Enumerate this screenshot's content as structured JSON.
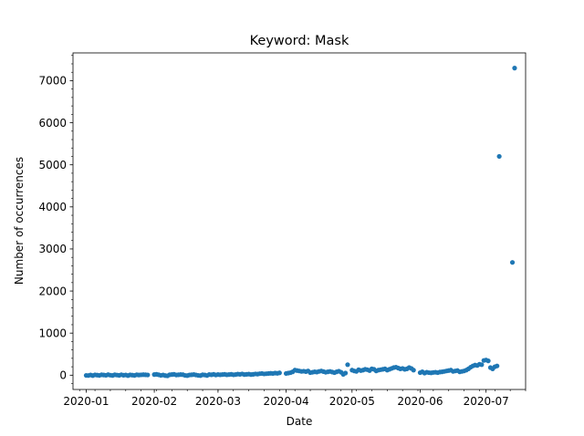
{
  "chart_data": {
    "type": "scatter",
    "title": "Keyword: Mask",
    "xlabel": "Date",
    "ylabel": "Number of occurrences",
    "x_ticks": [
      "2020-01",
      "2020-02",
      "2020-03",
      "2020-04",
      "2020-05",
      "2020-06",
      "2020-07"
    ],
    "y_ticks": [
      "0",
      "1000",
      "2000",
      "3000",
      "4000",
      "5000",
      "6000",
      "7000"
    ],
    "xlim": [
      "2019-12-26",
      "2020-07-19"
    ],
    "ylim": [
      -340,
      7660
    ],
    "grid": false,
    "color": "#1f77b4",
    "series": [
      {
        "points": [
          [
            "2020-01-01",
            -5
          ],
          [
            "2020-01-02",
            -8
          ],
          [
            "2020-01-03",
            5
          ],
          [
            "2020-01-04",
            -10
          ],
          [
            "2020-01-05",
            8
          ],
          [
            "2020-01-06",
            2
          ],
          [
            "2020-01-07",
            -6
          ],
          [
            "2020-01-08",
            10
          ],
          [
            "2020-01-09",
            4
          ],
          [
            "2020-01-10",
            -3
          ],
          [
            "2020-01-11",
            12
          ],
          [
            "2020-01-12",
            0
          ],
          [
            "2020-01-13",
            -7
          ],
          [
            "2020-01-14",
            9
          ],
          [
            "2020-01-15",
            3
          ],
          [
            "2020-01-16",
            -4
          ],
          [
            "2020-01-17",
            11
          ],
          [
            "2020-01-18",
            -2
          ],
          [
            "2020-01-19",
            6
          ],
          [
            "2020-01-20",
            -9
          ],
          [
            "2020-01-21",
            7
          ],
          [
            "2020-01-22",
            1
          ],
          [
            "2020-01-23",
            -6
          ],
          [
            "2020-01-24",
            10
          ],
          [
            "2020-01-25",
            4
          ],
          [
            "2020-01-26",
            8
          ],
          [
            "2020-01-27",
            12
          ],
          [
            "2020-01-28",
            9
          ],
          [
            "2020-01-29",
            6
          ],
          [
            "2020-02-01",
            15
          ],
          [
            "2020-02-02",
            20
          ],
          [
            "2020-02-03",
            10
          ],
          [
            "2020-02-04",
            -5
          ],
          [
            "2020-02-05",
            5
          ],
          [
            "2020-02-06",
            -10
          ],
          [
            "2020-02-07",
            -15
          ],
          [
            "2020-02-08",
            10
          ],
          [
            "2020-02-09",
            15
          ],
          [
            "2020-02-10",
            20
          ],
          [
            "2020-02-11",
            5
          ],
          [
            "2020-02-12",
            10
          ],
          [
            "2020-02-13",
            15
          ],
          [
            "2020-02-14",
            12
          ],
          [
            "2020-02-15",
            -5
          ],
          [
            "2020-02-16",
            -10
          ],
          [
            "2020-02-17",
            5
          ],
          [
            "2020-02-18",
            10
          ],
          [
            "2020-02-19",
            15
          ],
          [
            "2020-02-20",
            5
          ],
          [
            "2020-02-21",
            -5
          ],
          [
            "2020-02-22",
            -10
          ],
          [
            "2020-02-23",
            10
          ],
          [
            "2020-02-24",
            5
          ],
          [
            "2020-02-25",
            -8
          ],
          [
            "2020-02-26",
            15
          ],
          [
            "2020-02-27",
            10
          ],
          [
            "2020-02-28",
            20
          ],
          [
            "2020-02-29",
            5
          ],
          [
            "2020-03-01",
            15
          ],
          [
            "2020-03-02",
            10
          ],
          [
            "2020-03-03",
            15
          ],
          [
            "2020-03-04",
            20
          ],
          [
            "2020-03-05",
            10
          ],
          [
            "2020-03-06",
            15
          ],
          [
            "2020-03-07",
            20
          ],
          [
            "2020-03-08",
            10
          ],
          [
            "2020-03-09",
            15
          ],
          [
            "2020-03-10",
            25
          ],
          [
            "2020-03-11",
            20
          ],
          [
            "2020-03-12",
            30
          ],
          [
            "2020-03-13",
            15
          ],
          [
            "2020-03-14",
            20
          ],
          [
            "2020-03-15",
            25
          ],
          [
            "2020-03-16",
            15
          ],
          [
            "2020-03-17",
            20
          ],
          [
            "2020-03-18",
            30
          ],
          [
            "2020-03-19",
            25
          ],
          [
            "2020-03-20",
            35
          ],
          [
            "2020-03-21",
            40
          ],
          [
            "2020-03-22",
            30
          ],
          [
            "2020-03-23",
            35
          ],
          [
            "2020-03-24",
            40
          ],
          [
            "2020-03-25",
            45
          ],
          [
            "2020-03-26",
            40
          ],
          [
            "2020-03-27",
            50
          ],
          [
            "2020-03-28",
            45
          ],
          [
            "2020-03-29",
            55
          ],
          [
            "2020-04-01",
            40
          ],
          [
            "2020-04-02",
            50
          ],
          [
            "2020-04-03",
            60
          ],
          [
            "2020-04-04",
            80
          ],
          [
            "2020-04-05",
            120
          ],
          [
            "2020-04-06",
            110
          ],
          [
            "2020-04-07",
            100
          ],
          [
            "2020-04-08",
            90
          ],
          [
            "2020-04-09",
            95
          ],
          [
            "2020-04-10",
            85
          ],
          [
            "2020-04-11",
            100
          ],
          [
            "2020-04-12",
            60
          ],
          [
            "2020-04-13",
            70
          ],
          [
            "2020-04-14",
            80
          ],
          [
            "2020-04-15",
            75
          ],
          [
            "2020-04-16",
            90
          ],
          [
            "2020-04-17",
            100
          ],
          [
            "2020-04-18",
            85
          ],
          [
            "2020-04-19",
            70
          ],
          [
            "2020-04-20",
            80
          ],
          [
            "2020-04-21",
            90
          ],
          [
            "2020-04-22",
            75
          ],
          [
            "2020-04-23",
            60
          ],
          [
            "2020-04-24",
            80
          ],
          [
            "2020-04-25",
            95
          ],
          [
            "2020-04-26",
            70
          ],
          [
            "2020-04-27",
            20
          ],
          [
            "2020-04-28",
            50
          ],
          [
            "2020-04-29",
            250
          ],
          [
            "2020-05-01",
            120
          ],
          [
            "2020-05-02",
            100
          ],
          [
            "2020-05-03",
            90
          ],
          [
            "2020-05-04",
            130
          ],
          [
            "2020-05-05",
            110
          ],
          [
            "2020-05-06",
            120
          ],
          [
            "2020-05-07",
            140
          ],
          [
            "2020-05-08",
            130
          ],
          [
            "2020-05-09",
            110
          ],
          [
            "2020-05-10",
            150
          ],
          [
            "2020-05-11",
            140
          ],
          [
            "2020-05-12",
            100
          ],
          [
            "2020-05-13",
            120
          ],
          [
            "2020-05-14",
            130
          ],
          [
            "2020-05-15",
            140
          ],
          [
            "2020-05-16",
            150
          ],
          [
            "2020-05-17",
            120
          ],
          [
            "2020-05-18",
            140
          ],
          [
            "2020-05-19",
            160
          ],
          [
            "2020-05-20",
            180
          ],
          [
            "2020-05-21",
            190
          ],
          [
            "2020-05-22",
            170
          ],
          [
            "2020-05-23",
            150
          ],
          [
            "2020-05-24",
            160
          ],
          [
            "2020-05-25",
            140
          ],
          [
            "2020-05-26",
            150
          ],
          [
            "2020-05-27",
            180
          ],
          [
            "2020-05-28",
            160
          ],
          [
            "2020-05-29",
            120
          ],
          [
            "2020-06-01",
            60
          ],
          [
            "2020-06-02",
            80
          ],
          [
            "2020-06-03",
            50
          ],
          [
            "2020-06-04",
            70
          ],
          [
            "2020-06-05",
            60
          ],
          [
            "2020-06-06",
            55
          ],
          [
            "2020-06-07",
            65
          ],
          [
            "2020-06-08",
            70
          ],
          [
            "2020-06-09",
            60
          ],
          [
            "2020-06-10",
            75
          ],
          [
            "2020-06-11",
            80
          ],
          [
            "2020-06-12",
            90
          ],
          [
            "2020-06-13",
            100
          ],
          [
            "2020-06-14",
            110
          ],
          [
            "2020-06-15",
            120
          ],
          [
            "2020-06-16",
            90
          ],
          [
            "2020-06-17",
            100
          ],
          [
            "2020-06-18",
            110
          ],
          [
            "2020-06-19",
            80
          ],
          [
            "2020-06-20",
            90
          ],
          [
            "2020-06-21",
            100
          ],
          [
            "2020-06-22",
            120
          ],
          [
            "2020-06-23",
            150
          ],
          [
            "2020-06-24",
            190
          ],
          [
            "2020-06-25",
            220
          ],
          [
            "2020-06-26",
            240
          ],
          [
            "2020-06-27",
            230
          ],
          [
            "2020-06-28",
            260
          ],
          [
            "2020-06-29",
            250
          ],
          [
            "2020-06-30",
            350
          ],
          [
            "2020-07-01",
            360
          ],
          [
            "2020-07-02",
            340
          ],
          [
            "2020-07-03",
            180
          ],
          [
            "2020-07-04",
            150
          ],
          [
            "2020-07-05",
            200
          ],
          [
            "2020-07-06",
            220
          ],
          [
            "2020-07-07",
            5200
          ],
          [
            "2020-07-13",
            2680
          ],
          [
            "2020-07-14",
            7300
          ]
        ]
      }
    ]
  }
}
